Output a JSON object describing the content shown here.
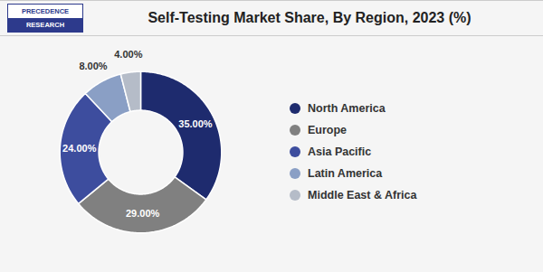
{
  "chart_data": {
    "type": "pie",
    "title": "Self-Testing Market Share, By Region, 2023 (%)",
    "categories": [
      "North America",
      "Europe",
      "Asia Pacific",
      "Latin America",
      "Middle East & Africa"
    ],
    "values": [
      35.0,
      29.0,
      24.0,
      8.0,
      4.0
    ],
    "value_labels": [
      "35.00%",
      "29.00%",
      "24.00%",
      "8.00%",
      "4.00%"
    ],
    "colors": [
      "#1e2b6e",
      "#808080",
      "#3d4d9e",
      "#8a9fc5",
      "#b5bcc8"
    ],
    "data_labels": true,
    "legend": "right",
    "annotations": [
      "PRECEDENCE",
      "RESEARCH"
    ]
  }
}
